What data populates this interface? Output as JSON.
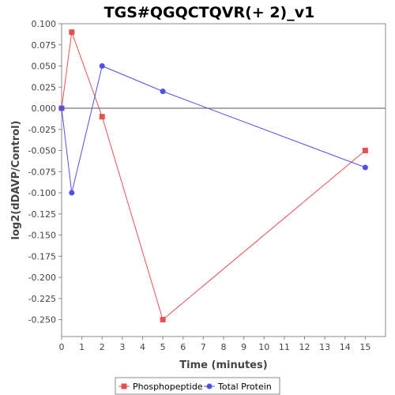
{
  "chart_data": {
    "type": "line",
    "title": "TGS#QGQCTQVR(+ 2)_v1",
    "xlabel": "Time (minutes)",
    "ylabel": "log2(dDAVP/Control)",
    "xlim": [
      0,
      16
    ],
    "ylim": [
      -0.27,
      0.1
    ],
    "x_ticks": [
      0,
      1,
      2,
      3,
      4,
      5,
      6,
      7,
      8,
      9,
      10,
      11,
      12,
      13,
      14,
      15
    ],
    "y_ticks": [
      0.1,
      0.075,
      0.05,
      0.025,
      0.0,
      -0.025,
      -0.05,
      -0.075,
      -0.1,
      -0.125,
      -0.15,
      -0.175,
      -0.2,
      -0.225,
      -0.25
    ],
    "y_tick_labels": [
      "0.100",
      "0.075",
      "0.050",
      "0.025",
      "0.000",
      "-0.025",
      "-0.050",
      "-0.075",
      "-0.100",
      "-0.125",
      "-0.150",
      "-0.175",
      "-0.200",
      "-0.225",
      "-0.250"
    ],
    "zero_line": true,
    "grid": false,
    "legend_position": "bottom",
    "series": [
      {
        "name": "Phosphopeptide",
        "color": "#e85050",
        "marker": "square",
        "x": [
          0,
          0.5,
          2,
          5,
          15
        ],
        "y": [
          0.0,
          0.09,
          -0.01,
          -0.25,
          -0.05
        ]
      },
      {
        "name": "Total Protein",
        "color": "#5050e8",
        "marker": "circle",
        "x": [
          0,
          0.5,
          2,
          5,
          15
        ],
        "y": [
          0.0,
          -0.1,
          0.05,
          0.02,
          -0.07
        ]
      }
    ]
  }
}
